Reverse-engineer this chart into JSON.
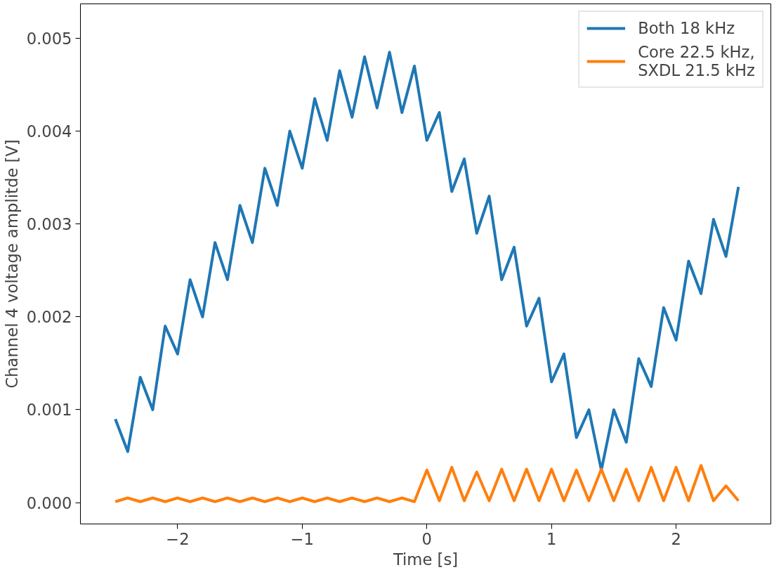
{
  "chart_data": {
    "type": "line",
    "xlabel": "Time [s]",
    "ylabel": "Channel 4 voltage amplitde [V]",
    "x": [
      -2.5,
      -2.4,
      -2.3,
      -2.2,
      -2.1,
      -2.0,
      -1.9,
      -1.8,
      -1.7,
      -1.6,
      -1.5,
      -1.4,
      -1.3,
      -1.2,
      -1.1,
      -1.0,
      -0.9,
      -0.8,
      -0.7,
      -0.6,
      -0.5,
      -0.4,
      -0.3,
      -0.2,
      -0.1,
      0.0,
      0.1,
      0.2,
      0.3,
      0.4,
      0.5,
      0.6,
      0.7,
      0.8,
      0.9,
      1.0,
      1.1,
      1.2,
      1.3,
      1.4,
      1.5,
      1.6,
      1.7,
      1.8,
      1.9,
      2.0,
      2.1,
      2.2,
      2.3,
      2.4,
      2.5
    ],
    "series": [
      {
        "name": "Both 18 kHz",
        "color": "#1f77b4",
        "values": [
          0.0009,
          0.00055,
          0.00135,
          0.001,
          0.0019,
          0.0016,
          0.0024,
          0.002,
          0.0028,
          0.0024,
          0.0032,
          0.0028,
          0.0036,
          0.0032,
          0.004,
          0.0036,
          0.00435,
          0.0039,
          0.00465,
          0.00415,
          0.0048,
          0.00425,
          0.00485,
          0.0042,
          0.0047,
          0.0039,
          0.0042,
          0.00335,
          0.0037,
          0.0029,
          0.0033,
          0.0024,
          0.00275,
          0.0019,
          0.0022,
          0.0013,
          0.0016,
          0.0007,
          0.001,
          0.00035,
          0.001,
          0.00065,
          0.00155,
          0.00125,
          0.0021,
          0.00175,
          0.0026,
          0.00225,
          0.00305,
          0.00265,
          0.0034
        ]
      },
      {
        "name": "Core 22.5 kHz,\nSXDL 21.5 kHz",
        "color": "#ff7f0e",
        "values": [
          1e-05,
          5e-05,
          1e-05,
          5e-05,
          1e-05,
          5e-05,
          1e-05,
          5e-05,
          1e-05,
          5e-05,
          1e-05,
          5e-05,
          1e-05,
          5e-05,
          1e-05,
          5e-05,
          1e-05,
          5e-05,
          1e-05,
          5e-05,
          1e-05,
          5e-05,
          1e-05,
          5e-05,
          1e-05,
          0.00035,
          2e-05,
          0.00038,
          2e-05,
          0.00033,
          2e-05,
          0.00036,
          2e-05,
          0.00036,
          2e-05,
          0.00036,
          2e-05,
          0.00035,
          2e-05,
          0.00036,
          2e-05,
          0.00036,
          2e-05,
          0.00038,
          2e-05,
          0.00038,
          2e-05,
          0.0004,
          2e-05,
          0.00018,
          2e-05
        ]
      }
    ],
    "xlim": [
      -2.78,
      2.76
    ],
    "ylim": [
      -0.00023,
      0.00537
    ],
    "xticks": [
      {
        "value": -2,
        "label": "−2"
      },
      {
        "value": -1,
        "label": "−1"
      },
      0,
      1,
      2
    ],
    "yticks": [
      {
        "value": 0,
        "label": "0.000"
      },
      {
        "value": 0.001,
        "label": "0.001"
      },
      {
        "value": 0.002,
        "label": "0.002"
      },
      {
        "value": 0.003,
        "label": "0.003"
      },
      {
        "value": 0.004,
        "label": "0.004"
      },
      {
        "value": 0.005,
        "label": "0.005"
      }
    ],
    "grid": false,
    "legend": "top right",
    "line_style": "solid"
  }
}
